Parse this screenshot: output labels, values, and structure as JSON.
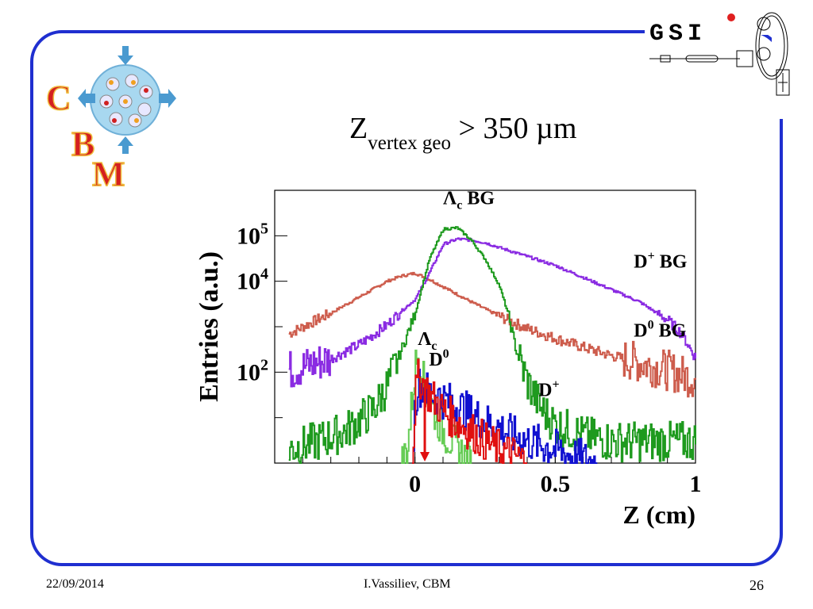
{
  "slide": {
    "title_main": "Z",
    "title_sub": "vertex geo",
    "title_rest": " > 350 µm",
    "footer_date": "22/09/2014",
    "footer_author": "I.Vassiliev, CBM",
    "page_number": "26"
  },
  "logos": {
    "cbm_letters": [
      "C",
      "B",
      "M"
    ],
    "gsi_text": "GSI"
  },
  "colors": {
    "frame": "#1f2fd0",
    "lambda_bg": "#1e9a1e",
    "dplus_bg": "#8a2be2",
    "d0_bg": "#cd5c4c",
    "lambda_c": "#66cc55",
    "d0": "#e01010",
    "dplus": "#1010d0"
  },
  "chart_data": {
    "type": "line",
    "xlabel": "Z (cm)",
    "ylabel": "Entries (a.u.)",
    "yscale": "log",
    "xlim": [
      -0.5,
      1.0
    ],
    "ylim": [
      1,
      1000000
    ],
    "x_ticks": [
      "0",
      "0.5",
      "1"
    ],
    "y_ticks": [
      {
        "base": "10",
        "exp": "5"
      },
      {
        "base": "10",
        "exp": "4"
      },
      {
        "base": "10",
        "exp": "2"
      }
    ],
    "series": [
      {
        "key": "lambda_bg",
        "x": [
          -0.45,
          -0.35,
          -0.25,
          -0.15,
          -0.1,
          -0.05,
          0.0,
          0.05,
          0.1,
          0.15,
          0.2,
          0.25,
          0.3,
          0.33,
          0.36,
          0.4,
          0.45,
          0.5,
          0.6,
          0.7,
          0.8,
          0.9,
          1.0
        ],
        "y": [
          2,
          3,
          5,
          15,
          50,
          300,
          2000,
          30000,
          140000,
          150000,
          80000,
          30000,
          8000,
          2000,
          300,
          60,
          15,
          7,
          4,
          3,
          3,
          3,
          3
        ]
      },
      {
        "key": "dplus_bg",
        "x": [
          -0.45,
          -0.4,
          -0.3,
          -0.2,
          -0.1,
          -0.05,
          0.0,
          0.05,
          0.1,
          0.15,
          0.2,
          0.25,
          0.3,
          0.4,
          0.5,
          0.6,
          0.7,
          0.8,
          0.9,
          0.95,
          1.0
        ],
        "y": [
          110,
          130,
          200,
          400,
          1100,
          2200,
          4000,
          15000,
          65000,
          85000,
          80000,
          70000,
          55000,
          35000,
          22000,
          12000,
          6500,
          3500,
          1400,
          700,
          200
        ]
      },
      {
        "key": "d0_bg",
        "x": [
          -0.45,
          -0.4,
          -0.3,
          -0.2,
          -0.1,
          -0.05,
          0.0,
          0.05,
          0.1,
          0.2,
          0.3,
          0.4,
          0.5,
          0.6,
          0.7,
          0.8,
          0.9,
          1.0
        ],
        "y": [
          700,
          1000,
          2000,
          4500,
          10000,
          13000,
          15000,
          11000,
          7500,
          3500,
          1700,
          900,
          550,
          350,
          230,
          160,
          110,
          70
        ]
      },
      {
        "key": "lambda_c",
        "x": [
          -0.05,
          -0.03,
          -0.02,
          -0.01,
          0.0,
          0.01,
          0.02,
          0.03,
          0.05,
          0.07,
          0.1,
          0.15,
          0.2
        ],
        "y": [
          1,
          2,
          6,
          30,
          130,
          220,
          130,
          60,
          25,
          12,
          5,
          2,
          1
        ]
      },
      {
        "key": "d0",
        "x": [
          -0.01,
          0.0,
          0.01,
          0.02,
          0.03,
          0.05,
          0.08,
          0.1,
          0.15,
          0.2,
          0.25,
          0.3,
          0.35,
          0.4
        ],
        "y": [
          1,
          30,
          70,
          70,
          50,
          32,
          20,
          14,
          8,
          5,
          3,
          2,
          1.5,
          1
        ]
      },
      {
        "key": "dplus",
        "x": [
          -0.01,
          0.0,
          0.01,
          0.03,
          0.05,
          0.08,
          0.1,
          0.15,
          0.2,
          0.25,
          0.3,
          0.35,
          0.4,
          0.45,
          0.5,
          0.55,
          0.6,
          0.65
        ],
        "y": [
          1,
          25,
          50,
          45,
          35,
          30,
          25,
          18,
          12,
          8,
          6,
          4,
          3,
          2.5,
          2,
          1.5,
          1.2,
          1
        ]
      }
    ],
    "annotations": [
      {
        "key": "lambda_bg",
        "text": "Λ",
        "sub": "c",
        "rest": " BG",
        "x": 0.1,
        "y": 500000
      },
      {
        "key": "dplus_bg",
        "text": "D",
        "sup": "+",
        "rest": " BG",
        "x": 0.78,
        "y": 20000
      },
      {
        "key": "d0_bg",
        "text": "D",
        "sup": "0",
        "rest": " BG",
        "x": 0.78,
        "y": 600
      },
      {
        "key": "lambda_c",
        "text": "Λ",
        "sub": "c",
        "rest": "",
        "x": 0.01,
        "y": 400
      },
      {
        "key": "d0",
        "text": "D",
        "sup": "0",
        "rest": "",
        "x": 0.05,
        "y": 140
      },
      {
        "key": "dplus",
        "text": "D",
        "sup": "+",
        "rest": "",
        "x": 0.44,
        "y": 30
      }
    ],
    "cut_arrow_x": 0.035
  }
}
